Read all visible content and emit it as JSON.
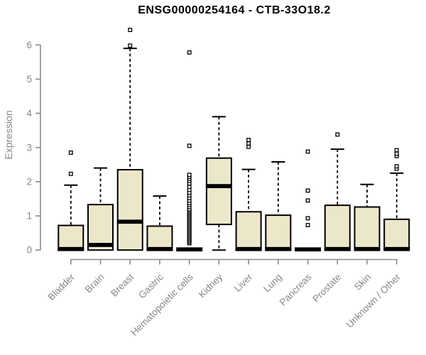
{
  "colors": {
    "background": "#ffffff",
    "box_fill": "#ede7ca",
    "box_border": "#000000",
    "median": "#000000",
    "whisker": "#000000",
    "outlier": "#000000",
    "axis_line": "#8a8a8a",
    "axis_text": "#878787",
    "title_text": "#000000"
  },
  "chart_data": {
    "type": "boxplot",
    "title": "ENSG00000254164 - CTB-33O18.2",
    "ylabel": "Expression",
    "xlabel": "",
    "ylim": [
      0,
      6.5
    ],
    "yticks": [
      0,
      1,
      2,
      3,
      4,
      5,
      6
    ],
    "grid": false,
    "categories": [
      "Bladder",
      "Brain",
      "Breast",
      "Gastric",
      "Hematopoietic cells",
      "Kidney",
      "Liver",
      "Lung",
      "Pancreas",
      "Prostate",
      "Skin",
      "Unknown / Other"
    ],
    "series": [
      {
        "category": "Bladder",
        "low": 0,
        "q1": 0,
        "median": 0.03,
        "q3": 0.72,
        "high": 1.9,
        "outliers": [
          2.23,
          2.85
        ]
      },
      {
        "category": "Brain",
        "low": 0,
        "q1": 0,
        "median": 0.15,
        "q3": 1.33,
        "high": 2.4,
        "outliers": []
      },
      {
        "category": "Breast",
        "low": 0,
        "q1": 0,
        "median": 0.83,
        "q3": 2.35,
        "high": 5.9,
        "outliers": [
          5.98,
          6.44
        ]
      },
      {
        "category": "Gastric",
        "low": 0,
        "q1": 0,
        "median": 0.03,
        "q3": 0.7,
        "high": 1.58,
        "outliers": []
      },
      {
        "category": "Hematopoietic cells",
        "low": 0,
        "q1": 0,
        "median": 0.02,
        "q3": 0,
        "high": 0,
        "outliers": [
          0.2,
          0.24,
          0.28,
          0.32,
          0.36,
          0.4,
          0.44,
          0.48,
          0.52,
          0.56,
          0.6,
          0.64,
          0.68,
          0.72,
          0.76,
          0.8,
          0.84,
          0.88,
          0.92,
          0.96,
          1.0,
          1.04,
          1.08,
          1.12,
          1.16,
          1.2,
          1.26,
          1.32,
          1.38,
          1.45,
          1.52,
          1.6,
          1.68,
          1.76,
          1.85,
          1.95,
          2.02,
          2.08,
          2.14,
          2.2,
          3.05,
          5.78
        ]
      },
      {
        "category": "Kidney",
        "low": 0,
        "q1": 0.75,
        "median": 1.87,
        "q3": 2.69,
        "high": 3.9,
        "outliers": []
      },
      {
        "category": "Liver",
        "low": 0,
        "q1": 0,
        "median": 0.03,
        "q3": 1.12,
        "high": 2.36,
        "outliers": [
          3.02,
          3.12,
          3.22
        ]
      },
      {
        "category": "Lung",
        "low": 0,
        "q1": 0,
        "median": 0.03,
        "q3": 1.02,
        "high": 2.58,
        "outliers": []
      },
      {
        "category": "Pancreas",
        "low": 0,
        "q1": 0,
        "median": 0.02,
        "q3": 0,
        "high": 0,
        "outliers": [
          0.73,
          0.93,
          1.45,
          1.74,
          2.88
        ]
      },
      {
        "category": "Prostate",
        "low": 0,
        "q1": 0,
        "median": 0.03,
        "q3": 1.31,
        "high": 2.95,
        "outliers": [
          3.38
        ]
      },
      {
        "category": "Skin",
        "low": 0,
        "q1": 0,
        "median": 0.03,
        "q3": 1.26,
        "high": 1.92,
        "outliers": []
      },
      {
        "category": "Unknown / Other",
        "low": 0,
        "q1": 0,
        "median": 0.03,
        "q3": 0.9,
        "high": 2.25,
        "outliers": [
          2.38,
          2.45,
          2.75,
          2.82,
          2.92
        ]
      }
    ],
    "legend": null
  }
}
